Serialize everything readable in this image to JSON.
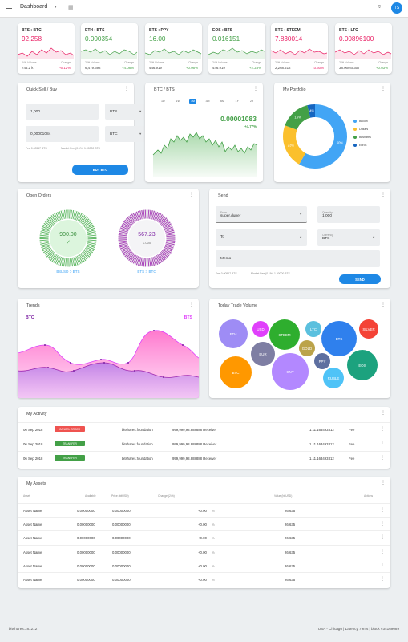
{
  "topbar": {
    "title": "Dashboard",
    "avatar": "TS"
  },
  "tickers": [
    {
      "pair": "BTS : BTC",
      "price": "92,258",
      "price_color": "#e91e63",
      "vol_label": "24H Volume",
      "vol": "745.2 k",
      "chg_label": "Change",
      "chg": "-6.12%",
      "chg_color": "#e91e63",
      "line_color": "#e91e63"
    },
    {
      "pair": "ETH : BTS",
      "price": "0.000354",
      "price_color": "#43a047",
      "vol_label": "24H Volume",
      "vol": "6,479.692",
      "chg_label": "Change",
      "chg": "+4.08%",
      "chg_color": "#43a047",
      "line_color": "#43a047"
    },
    {
      "pair": "BTS : PPY",
      "price": "16.00",
      "price_color": "#43a047",
      "vol_label": "24H Volume",
      "vol": "446.919",
      "chg_label": "Change",
      "chg": "+0.06%",
      "chg_color": "#43a047",
      "line_color": "#43a047"
    },
    {
      "pair": "EOS : BTS",
      "price": "0.016151",
      "price_color": "#43a047",
      "vol_label": "24H Volume",
      "vol": "446.919",
      "chg_label": "Change",
      "chg": "+2.23%",
      "chg_color": "#43a047",
      "line_color": "#43a047"
    },
    {
      "pair": "BTS : STEEM",
      "price": "7.830014",
      "price_color": "#e91e63",
      "vol_label": "24H Volume",
      "vol": "2,268.212",
      "chg_label": "Change",
      "chg": "-3.60%",
      "chg_color": "#e91e63",
      "line_color": "#e91e63"
    },
    {
      "pair": "BTS : LTC",
      "price": "0.00896100",
      "price_color": "#e91e63",
      "vol_label": "24H Volume",
      "vol": "38.06945307",
      "chg_label": "Change",
      "chg": "+0.03%",
      "chg_color": "#43a047",
      "line_color": "#e91e63"
    }
  ],
  "quick": {
    "title": "Quick Sell / Buy",
    "amount": "1,000",
    "asset1": "BTS",
    "price": "0,00001084",
    "asset2": "BTC",
    "fee": "Fee 0.00567 BTS",
    "market_fee": "Market Fee (0.1%) 1.00000 BTS",
    "button": "BUY BTC"
  },
  "btcbts": {
    "title": "BTC / BTS",
    "tabs": [
      "1D",
      "1W",
      "1M",
      "3M",
      "6M",
      "1Y",
      "2Y"
    ],
    "active_tab": "1M",
    "price": "0.00001083",
    "change": "+4.77%"
  },
  "portfolio": {
    "title": "My Portfolio",
    "slices": [
      {
        "name": "Bitcoin",
        "value": 60,
        "color": "#42a5f5"
      },
      {
        "name": "Dollars",
        "value": 23,
        "color": "#fbc02d"
      },
      {
        "name": "Bitshares",
        "value": 16,
        "color": "#43a047"
      },
      {
        "name": "Euros",
        "value": 4,
        "color": "#1565c0"
      }
    ]
  },
  "orders": {
    "title": "Open Orders",
    "ring1_value": "900.00",
    "ring1_label": "BitUSD > BTS",
    "ring2_value": "567.23",
    "ring2_sub": "1.000",
    "ring2_label": "BTS > BTC"
  },
  "send": {
    "title": "Send",
    "from_label": "From",
    "from": "super.duper",
    "qty_label": "Quantity",
    "qty": "1,000",
    "to": "To",
    "cur_label": "Currency",
    "cur": "BTS",
    "memo": "Memo",
    "fee": "Fee 0.00567 BTS",
    "market_fee": "Market Fee (0.1%) 1.00000 BTS",
    "button": "SEND"
  },
  "trends": {
    "title": "Trends",
    "left": "BTC",
    "right": "BTS"
  },
  "volume": {
    "title": "Today Trade Volume",
    "bubbles": [
      {
        "name": "ETH",
        "color": "#9e8cf5"
      },
      {
        "name": "USD",
        "color": "#e040fb"
      },
      {
        "name": "STEEM",
        "color": "#2eae2e"
      },
      {
        "name": "LTC",
        "color": "#5bc0de"
      },
      {
        "name": "BTS",
        "color": "#2f80ed"
      },
      {
        "name": "SILVER",
        "color": "#f44336"
      },
      {
        "name": "EUR",
        "color": "#7e7ea3"
      },
      {
        "name": "GOLD",
        "color": "#bba34a"
      },
      {
        "name": "PPY",
        "color": "#5d6fa0"
      },
      {
        "name": "BTC",
        "color": "#ff9800"
      },
      {
        "name": "CNY",
        "color": "#b388ff"
      },
      {
        "name": "RUBLE",
        "color": "#4fc3f7"
      },
      {
        "name": "EOS",
        "color": "#1ca27e"
      }
    ]
  },
  "activity": {
    "title": "My Activity",
    "rows": [
      {
        "date": "06 Sep 2018",
        "badge": "CANCEL ORDER",
        "badge_color": "#ef5350",
        "account": "bitshares.foundation",
        "amount": "999,999,98.888888 Receiver",
        "id": "1.11.163493312",
        "fee": "Fee"
      },
      {
        "date": "06 Sep 2018",
        "badge": "TRANSFER",
        "badge_color": "#43a047",
        "account": "bitshares.foundation",
        "amount": "999,999,98.888888 Receiver",
        "id": "1.11.163493312",
        "fee": "Fee"
      },
      {
        "date": "06 Sep 2018",
        "badge": "TRANSFER",
        "badge_color": "#43a047",
        "account": "bitshares.foundation",
        "amount": "999,999,98.888888 Receiver",
        "id": "1.11.163493312",
        "fee": "Fee"
      }
    ]
  },
  "assets": {
    "title": "My Assets",
    "columns": [
      "Asset",
      "Available",
      "Price (bitUSD)",
      "Change (24h)",
      "Value (bitUSD)",
      "Actions"
    ],
    "rows": [
      {
        "asset": "Asset Name",
        "available": "0.00000000",
        "price": "0.00000000",
        "change": "+0.00",
        "pct": "%",
        "value": "26,635"
      },
      {
        "asset": "Asset Name",
        "available": "0.00000000",
        "price": "0.00000000",
        "change": "+0.00",
        "pct": "%",
        "value": "26,635"
      },
      {
        "asset": "Asset Name",
        "available": "0.00000000",
        "price": "0.00000000",
        "change": "+0.00",
        "pct": "%",
        "value": "26,635"
      },
      {
        "asset": "Asset Name",
        "available": "0.00000000",
        "price": "0.00000000",
        "change": "+0.00",
        "pct": "%",
        "value": "26,635"
      },
      {
        "asset": "Asset Name",
        "available": "0.00000000",
        "price": "0.00000000",
        "change": "+0.00",
        "pct": "%",
        "value": "26,635"
      },
      {
        "asset": "Asset Name",
        "available": "0.00000000",
        "price": "0.00000000",
        "change": "+0.00",
        "pct": "%",
        "value": "26,635"
      }
    ]
  },
  "footer": {
    "left": "bitshares.181212",
    "right": "USA - Chicago  |  Latency 79ms  |  block #34169089"
  }
}
